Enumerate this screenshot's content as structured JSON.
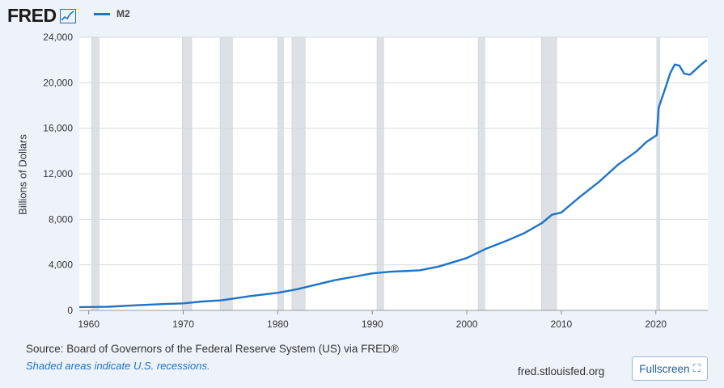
{
  "header": {
    "logo_text": "FRED",
    "logo_icon": "trend-line-icon"
  },
  "legend": {
    "label": "M2"
  },
  "footer": {
    "source": "Source: Board of Governors of the Federal Reserve System (US) via FRED®",
    "note": "Shaded areas indicate U.S. recessions.",
    "site": "fred.stlouisfed.org",
    "fullscreen_label": "Fullscreen",
    "fullscreen_icon": "expand-icon"
  },
  "colors": {
    "line": "#1f73c9",
    "recession": "#dde1e6",
    "plot_bg": "#ffffff"
  },
  "chart_data": {
    "type": "line",
    "title": "",
    "xlabel": "",
    "ylabel": "Billions of Dollars",
    "xlim": [
      1959,
      2025.5
    ],
    "ylim": [
      0,
      24000
    ],
    "x_ticks": [
      1960,
      1970,
      1980,
      1990,
      2000,
      2010,
      2020
    ],
    "y_ticks": [
      0,
      4000,
      8000,
      12000,
      16000,
      20000,
      24000
    ],
    "y_tick_labels": [
      "0",
      "4,000",
      "8,000",
      "12,000",
      "16,000",
      "20,000",
      "24,000"
    ],
    "grid": true,
    "legend": "top-left",
    "recessions": [
      [
        1960.3,
        1961.1
      ],
      [
        1969.9,
        1970.9
      ],
      [
        1973.9,
        1975.2
      ],
      [
        1980.0,
        1980.6
      ],
      [
        1981.5,
        1982.9
      ],
      [
        1990.5,
        1991.2
      ],
      [
        2001.2,
        2001.9
      ],
      [
        2007.9,
        2009.5
      ],
      [
        2020.1,
        2020.4
      ]
    ],
    "series": [
      {
        "name": "M2",
        "points": [
          [
            1959.0,
            290
          ],
          [
            1962,
            320
          ],
          [
            1965,
            450
          ],
          [
            1968,
            560
          ],
          [
            1970,
            620
          ],
          [
            1972,
            780
          ],
          [
            1974,
            880
          ],
          [
            1975,
            1000
          ],
          [
            1977,
            1250
          ],
          [
            1980,
            1550
          ],
          [
            1982,
            1850
          ],
          [
            1984,
            2250
          ],
          [
            1986,
            2650
          ],
          [
            1988,
            2950
          ],
          [
            1990,
            3250
          ],
          [
            1992,
            3400
          ],
          [
            1994,
            3480
          ],
          [
            1995,
            3520
          ],
          [
            1997,
            3850
          ],
          [
            1998,
            4100
          ],
          [
            2000,
            4600
          ],
          [
            2001,
            5000
          ],
          [
            2002,
            5400
          ],
          [
            2004,
            6050
          ],
          [
            2006,
            6750
          ],
          [
            2008,
            7700
          ],
          [
            2009,
            8400
          ],
          [
            2010,
            8600
          ],
          [
            2011,
            9300
          ],
          [
            2012,
            10000
          ],
          [
            2014,
            11300
          ],
          [
            2016,
            12800
          ],
          [
            2018,
            14000
          ],
          [
            2019,
            14800
          ],
          [
            2020.1,
            15400
          ],
          [
            2020.3,
            17800
          ],
          [
            2021,
            19500
          ],
          [
            2021.5,
            20800
          ],
          [
            2022,
            21600
          ],
          [
            2022.5,
            21500
          ],
          [
            2023,
            20800
          ],
          [
            2023.6,
            20700
          ],
          [
            2024,
            21000
          ],
          [
            2024.8,
            21600
          ],
          [
            2025.4,
            22000
          ]
        ]
      }
    ]
  }
}
